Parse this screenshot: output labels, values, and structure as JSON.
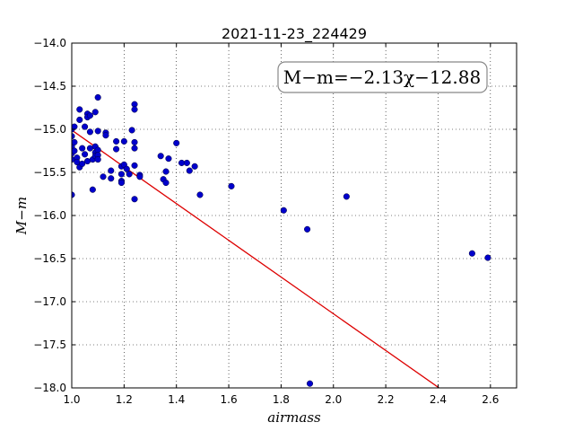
{
  "chart_data": {
    "type": "scatter",
    "title": "2021-11-23_224429",
    "xlabel": "airmass",
    "ylabel": "M−m",
    "xlim": [
      1.0,
      2.7
    ],
    "ylim": [
      -18.0,
      -14.0
    ],
    "grid": true,
    "xticks": [
      "1.0",
      "1.2",
      "1.4",
      "1.6",
      "1.8",
      "2.0",
      "2.2",
      "2.4",
      "2.6"
    ],
    "yticks": [
      "−14.0",
      "−14.5",
      "−15.0",
      "−15.5",
      "−16.0",
      "−16.5",
      "−17.0",
      "−17.5",
      "−18.0"
    ],
    "annotation": "M−m=−2.13χ−12.88",
    "annotation_placement": "top-right",
    "point_color": "#0000cc",
    "fit_color": "#dd0000",
    "fit": {
      "slope": -2.13,
      "intercept": -12.88
    },
    "points": [
      [
        1.0,
        -15.0
      ],
      [
        1.0,
        -15.08
      ],
      [
        1.0,
        -15.2
      ],
      [
        1.0,
        -15.28
      ],
      [
        1.0,
        -15.35
      ],
      [
        1.0,
        -15.76
      ],
      [
        1.01,
        -14.97
      ],
      [
        1.01,
        -15.15
      ],
      [
        1.01,
        -15.25
      ],
      [
        1.02,
        -15.33
      ],
      [
        1.02,
        -15.38
      ],
      [
        1.03,
        -14.77
      ],
      [
        1.03,
        -14.89
      ],
      [
        1.03,
        -15.44
      ],
      [
        1.04,
        -15.22
      ],
      [
        1.04,
        -15.4
      ],
      [
        1.05,
        -14.97
      ],
      [
        1.05,
        -15.29
      ],
      [
        1.06,
        -14.82
      ],
      [
        1.06,
        -14.86
      ],
      [
        1.06,
        -15.37
      ],
      [
        1.07,
        -14.84
      ],
      [
        1.07,
        -15.03
      ],
      [
        1.07,
        -15.22
      ],
      [
        1.08,
        -15.35
      ],
      [
        1.08,
        -15.7
      ],
      [
        1.09,
        -14.8
      ],
      [
        1.09,
        -15.2
      ],
      [
        1.09,
        -15.27
      ],
      [
        1.09,
        -15.31
      ],
      [
        1.1,
        -14.63
      ],
      [
        1.1,
        -15.02
      ],
      [
        1.1,
        -15.24
      ],
      [
        1.1,
        -15.3
      ],
      [
        1.1,
        -15.35
      ],
      [
        1.12,
        -15.55
      ],
      [
        1.13,
        -15.04
      ],
      [
        1.13,
        -15.07
      ],
      [
        1.15,
        -15.48
      ],
      [
        1.15,
        -15.57
      ],
      [
        1.17,
        -15.14
      ],
      [
        1.17,
        -15.23
      ],
      [
        1.19,
        -15.43
      ],
      [
        1.19,
        -15.52
      ],
      [
        1.19,
        -15.6
      ],
      [
        1.19,
        -15.62
      ],
      [
        1.2,
        -15.14
      ],
      [
        1.2,
        -15.41
      ],
      [
        1.21,
        -15.46
      ],
      [
        1.22,
        -15.52
      ],
      [
        1.23,
        -15.01
      ],
      [
        1.24,
        -14.71
      ],
      [
        1.24,
        -14.77
      ],
      [
        1.24,
        -15.15
      ],
      [
        1.24,
        -15.22
      ],
      [
        1.24,
        -15.42
      ],
      [
        1.24,
        -15.81
      ],
      [
        1.26,
        -15.53
      ],
      [
        1.26,
        -15.55
      ],
      [
        1.34,
        -15.31
      ],
      [
        1.35,
        -15.58
      ],
      [
        1.36,
        -15.49
      ],
      [
        1.36,
        -15.62
      ],
      [
        1.37,
        -15.34
      ],
      [
        1.4,
        -15.16
      ],
      [
        1.42,
        -15.39
      ],
      [
        1.44,
        -15.39
      ],
      [
        1.45,
        -15.48
      ],
      [
        1.47,
        -15.43
      ],
      [
        1.49,
        -15.76
      ],
      [
        1.61,
        -15.66
      ],
      [
        1.81,
        -15.94
      ],
      [
        1.9,
        -16.16
      ],
      [
        1.91,
        -17.95
      ],
      [
        2.05,
        -15.78
      ],
      [
        2.53,
        -16.44
      ],
      [
        2.59,
        -16.49
      ]
    ]
  }
}
